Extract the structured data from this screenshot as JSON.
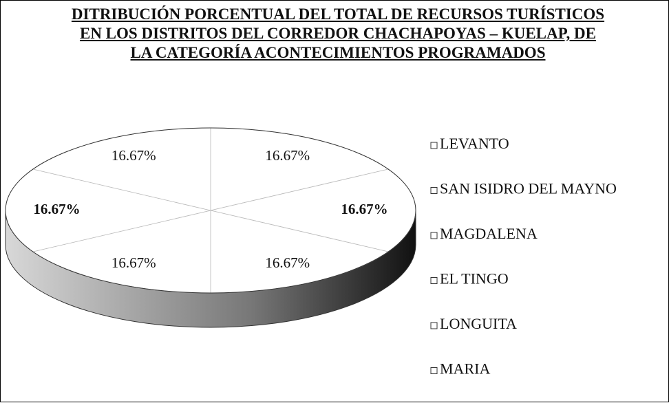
{
  "chart_data": {
    "type": "pie",
    "title": "DITRIBUCIÓN PORCENTUAL DEL TOTAL DE RECURSOS TURÍSTICOS EN LOS DISTRITOS DEL CORREDOR CHACHAPOYAS – KUELAP, DE LA CATEGORÍA ACONTECIMIENTOS PROGRAMADOS",
    "categories": [
      "LEVANTO",
      "SAN ISIDRO DEL MAYNO",
      "MAGDALENA",
      "EL TINGO",
      "LONGUITA",
      "MARIA"
    ],
    "values": [
      16.67,
      16.67,
      16.67,
      16.67,
      16.67,
      16.67
    ],
    "value_labels": [
      "16.67%",
      "16.67%",
      "16.67%",
      "16.67%",
      "16.67%",
      "16.67%"
    ],
    "colors": [
      "#ffffff",
      "#ffffff",
      "#ffffff",
      "#ffffff",
      "#ffffff",
      "#ffffff"
    ],
    "legend": "right"
  }
}
